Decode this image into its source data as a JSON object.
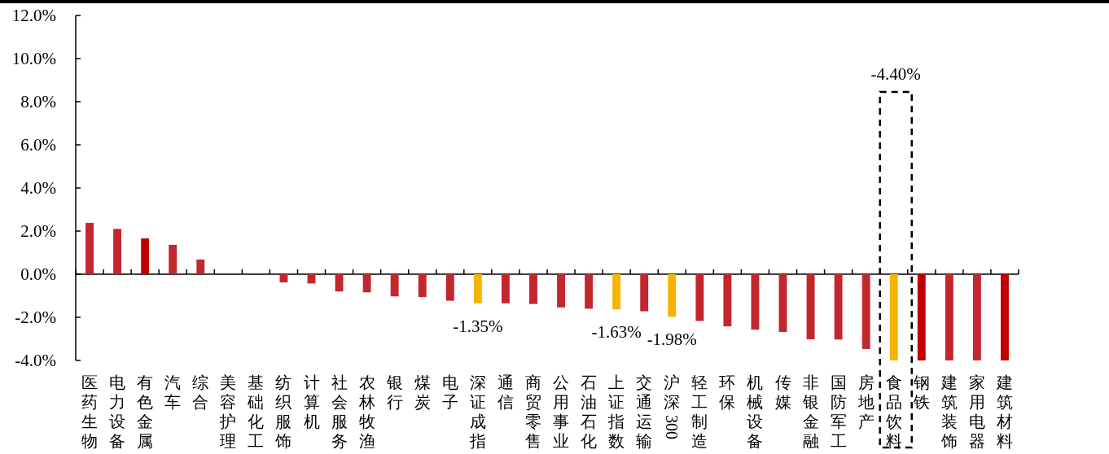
{
  "chart_data": {
    "type": "bar",
    "categories": [
      "医药生物",
      "电力设备",
      "有色金属",
      "汽车",
      "综合",
      "美容护理",
      "基础化工",
      "纺织服饰",
      "计算机",
      "社会服务",
      "农林牧渔",
      "银行",
      "煤炭",
      "电子",
      "深证成指",
      "通信",
      "商贸零售",
      "公用事业",
      "石油石化",
      "上证指数",
      "交通运输",
      "沪深300",
      "轻工制造",
      "环保",
      "机械设备",
      "传媒",
      "非银金融",
      "国防军工",
      "房地产",
      "食品饮料",
      "钢铁",
      "建筑装饰",
      "家用电器",
      "建筑材料"
    ],
    "values": [
      2.38,
      2.1,
      1.66,
      1.36,
      0.68,
      0,
      0,
      -0.38,
      -0.43,
      -0.8,
      -0.84,
      -1.03,
      -1.06,
      -1.23,
      -1.35,
      -1.35,
      -1.38,
      -1.54,
      -1.6,
      -1.63,
      -1.72,
      -1.98,
      -2.17,
      -2.42,
      -2.57,
      -2.68,
      -3.02,
      -3.03,
      -3.47,
      -4,
      -4,
      -4,
      -4,
      -4
    ],
    "colors": [
      "#c1272d",
      "#c1272d",
      "#c00000",
      "#c1272d",
      "#c1272d",
      "#c1272d",
      "#c1272d",
      "#c1272d",
      "#c1272d",
      "#c1272d",
      "#c1272d",
      "#c1272d",
      "#c1272d",
      "#c1272d",
      "#f5b400",
      "#c1272d",
      "#c1272d",
      "#c1272d",
      "#c1272d",
      "#f5b400",
      "#c1272d",
      "#f5b400",
      "#c1272d",
      "#c1272d",
      "#c1272d",
      "#c1272d",
      "#c1272d",
      "#c1272d",
      "#c1272d",
      "#f5b400",
      "#c00000",
      "#c1272d",
      "#c1272d",
      "#c00000"
    ],
    "value_labels": [
      null,
      null,
      null,
      null,
      null,
      null,
      null,
      null,
      null,
      null,
      null,
      null,
      null,
      null,
      "-1.35%",
      null,
      null,
      null,
      null,
      "-1.63%",
      null,
      "-1.98%",
      null,
      null,
      null,
      null,
      null,
      null,
      null,
      null,
      null,
      null,
      null,
      null
    ],
    "ylim": [
      -4,
      12
    ],
    "yticks": [
      {
        "value": -4,
        "label": "-4.0%"
      },
      {
        "value": -2,
        "label": "-2.0%"
      },
      {
        "value": 0,
        "label": "0.0%"
      },
      {
        "value": 2,
        "label": "2.0%"
      },
      {
        "value": 4,
        "label": "4.0%"
      },
      {
        "value": 6,
        "label": "6.0%"
      },
      {
        "value": 8,
        "label": "8.0%"
      },
      {
        "value": 10,
        "label": "10.0%"
      },
      {
        "value": 12,
        "label": "12.0%"
      }
    ],
    "annotations": [
      "-4.40%"
    ]
  }
}
